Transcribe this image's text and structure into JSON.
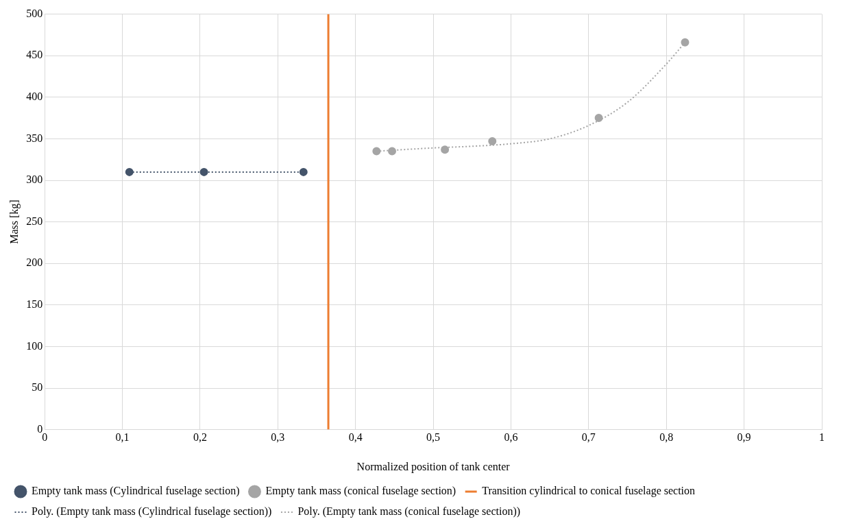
{
  "chart_data": {
    "type": "scatter",
    "xlabel": "Normalized position of tank center",
    "ylabel": "Mass [kg]",
    "xlim": [
      0,
      1
    ],
    "xticks": [
      0,
      {
        "value": 0.1,
        "label": "0,1"
      },
      {
        "value": 0.2,
        "label": "0,2"
      },
      {
        "value": 0.3,
        "label": "0,3"
      },
      {
        "value": 0.4,
        "label": "0,4"
      },
      {
        "value": 0.5,
        "label": "0,5"
      },
      {
        "value": 0.6,
        "label": "0,6"
      },
      {
        "value": 0.7,
        "label": "0,7"
      },
      {
        "value": 0.8,
        "label": "0,8"
      },
      {
        "value": 0.9,
        "label": "0,9"
      },
      1
    ],
    "ylim": [
      0,
      500
    ],
    "yticks": [
      0,
      50,
      100,
      150,
      200,
      250,
      300,
      350,
      400,
      450,
      500
    ],
    "grid": true,
    "legend": "bottom",
    "series": [
      {
        "name": "Empty tank mass (Cylindrical fuselage section)",
        "type": "scatter",
        "color": "#44546a",
        "marker": "circle",
        "x": [
          0.109,
          0.205,
          0.333
        ],
        "values": [
          310,
          310,
          310
        ]
      },
      {
        "name": "Empty tank mass (conical fuselage section)",
        "type": "scatter",
        "color": "#a5a5a5",
        "marker": "circle",
        "x": [
          0.427,
          0.447,
          0.515,
          0.576,
          0.713,
          0.824
        ],
        "values": [
          335,
          335,
          337,
          347,
          375,
          466
        ]
      },
      {
        "name": "Poly. (Empty tank mass (Cylindrical fuselage section))",
        "type": "line",
        "color": "#44546a",
        "marker": "none",
        "line_style": "dotted",
        "x": [
          0.109,
          0.333
        ],
        "values": [
          310,
          310
        ]
      },
      {
        "name": "Poly. (Empty tank mass (conical fuselage section))",
        "type": "line",
        "color": "#a5a5a5",
        "marker": "none",
        "line_style": "dotted",
        "x": [
          0.427,
          0.5,
          0.55,
          0.6,
          0.65,
          0.7,
          0.75,
          0.8,
          0.824
        ],
        "values": [
          335,
          339,
          341,
          344,
          350,
          366,
          394,
          440,
          466
        ]
      }
    ],
    "ref_lines": [
      {
        "axis": "x",
        "value": 0.365,
        "label": "Transition cylindrical to conical fuselage section",
        "color": "#ed7d31"
      }
    ]
  }
}
